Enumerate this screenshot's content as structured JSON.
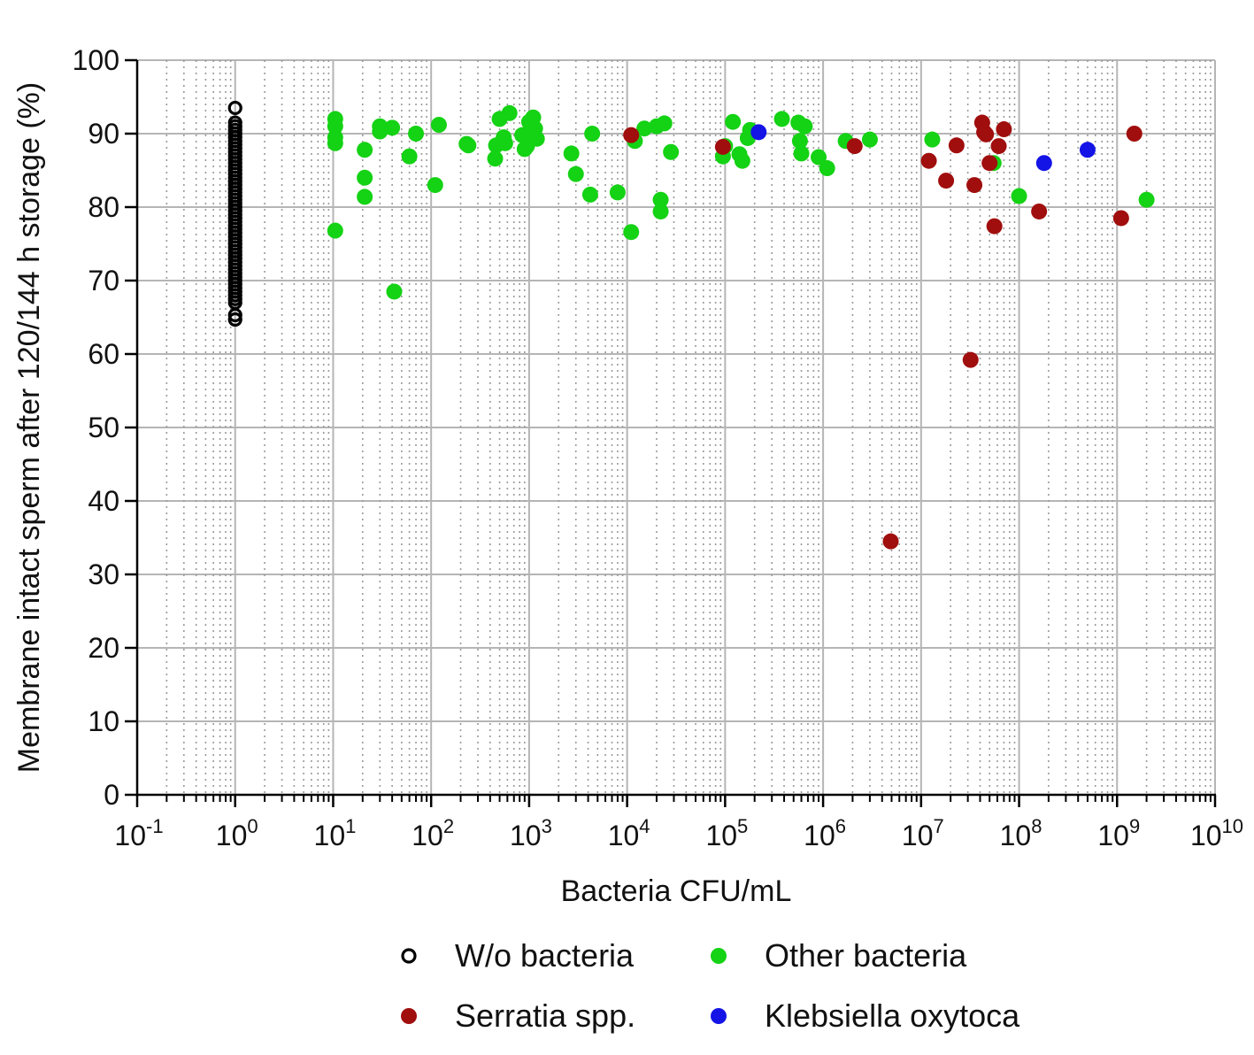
{
  "chart_data": {
    "type": "scatter",
    "title": "",
    "xlabel": "Bacteria CFU/mL",
    "ylabel": "Membrane intact sperm after 120/144 h storage (%)",
    "x_scale": "log10",
    "xlim": [
      0.1,
      10000000000
    ],
    "ylim": [
      0,
      100
    ],
    "y_ticks": [
      0,
      10,
      20,
      30,
      40,
      50,
      60,
      70,
      80,
      90,
      100
    ],
    "x_tick_labels": [
      {
        "base": "10",
        "exp": "-1"
      },
      {
        "base": "10",
        "exp": "0"
      },
      {
        "base": "10",
        "exp": "1"
      },
      {
        "base": "10",
        "exp": "2"
      },
      {
        "base": "10",
        "exp": "3"
      },
      {
        "base": "10",
        "exp": "4"
      },
      {
        "base": "10",
        "exp": "5"
      },
      {
        "base": "10",
        "exp": "6"
      },
      {
        "base": "10",
        "exp": "7"
      },
      {
        "base": "10",
        "exp": "8"
      },
      {
        "base": "10",
        "exp": "9"
      },
      {
        "base": "10",
        "exp": "10"
      }
    ],
    "grid": true,
    "legend_position": "bottom",
    "series": [
      {
        "name": "W/o bacteria",
        "color": "#000000",
        "marker": "open-circle",
        "points": [
          [
            1,
            93.5
          ],
          [
            1,
            91.5
          ],
          [
            1,
            91
          ],
          [
            1,
            90.5
          ],
          [
            1,
            90
          ],
          [
            1,
            89.5
          ],
          [
            1,
            89
          ],
          [
            1,
            88.5
          ],
          [
            1,
            88
          ],
          [
            1,
            87.5
          ],
          [
            1,
            87
          ],
          [
            1,
            86.5
          ],
          [
            1,
            86
          ],
          [
            1,
            85.5
          ],
          [
            1,
            85
          ],
          [
            1,
            84.5
          ],
          [
            1,
            84
          ],
          [
            1,
            83.5
          ],
          [
            1,
            83
          ],
          [
            1,
            82.5
          ],
          [
            1,
            82
          ],
          [
            1,
            81.5
          ],
          [
            1,
            81
          ],
          [
            1,
            80.5
          ],
          [
            1,
            80
          ],
          [
            1,
            79.5
          ],
          [
            1,
            79
          ],
          [
            1,
            78.5
          ],
          [
            1,
            78
          ],
          [
            1,
            77.5
          ],
          [
            1,
            77
          ],
          [
            1,
            76.5
          ],
          [
            1,
            76
          ],
          [
            1,
            75.5
          ],
          [
            1,
            75
          ],
          [
            1,
            74.5
          ],
          [
            1,
            74
          ],
          [
            1,
            73.5
          ],
          [
            1,
            73
          ],
          [
            1,
            72.5
          ],
          [
            1,
            72
          ],
          [
            1,
            71.5
          ],
          [
            1,
            71
          ],
          [
            1,
            70.5
          ],
          [
            1,
            70
          ],
          [
            1,
            69.5
          ],
          [
            1,
            69
          ],
          [
            1,
            68.5
          ],
          [
            1,
            68
          ],
          [
            1,
            67.5
          ],
          [
            1,
            67
          ],
          [
            1,
            65.3
          ],
          [
            1,
            64.7
          ]
        ]
      },
      {
        "name": "Other bacteria",
        "color": "#14d214",
        "marker": "filled-circle",
        "points": [
          [
            10.5,
            92
          ],
          [
            10.5,
            91
          ],
          [
            10.5,
            89.5
          ],
          [
            10.5,
            88.7
          ],
          [
            10.5,
            76.8
          ],
          [
            21,
            87.8
          ],
          [
            21,
            84
          ],
          [
            21,
            81.4
          ],
          [
            30,
            91
          ],
          [
            30,
            90.3
          ],
          [
            40,
            90.8
          ],
          [
            42,
            68.5
          ],
          [
            60,
            86.9
          ],
          [
            70,
            90
          ],
          [
            110,
            83
          ],
          [
            120,
            91.2
          ],
          [
            230,
            88.6
          ],
          [
            240,
            88.4
          ],
          [
            450,
            86.6
          ],
          [
            460,
            88.4
          ],
          [
            500,
            92
          ],
          [
            550,
            89.5
          ],
          [
            570,
            88.7
          ],
          [
            630,
            92.8
          ],
          [
            850,
            89.8
          ],
          [
            900,
            87.9
          ],
          [
            950,
            88.3
          ],
          [
            1000,
            91.6
          ],
          [
            1050,
            89.6
          ],
          [
            1100,
            92.2
          ],
          [
            1150,
            90.7
          ],
          [
            1200,
            89.3
          ],
          [
            2700,
            87.3
          ],
          [
            3000,
            84.5
          ],
          [
            4200,
            81.7
          ],
          [
            4400,
            90
          ],
          [
            8000,
            82
          ],
          [
            11000,
            76.6
          ],
          [
            12000,
            89
          ],
          [
            15000,
            90.7
          ],
          [
            20000,
            91
          ],
          [
            22000,
            81
          ],
          [
            22000,
            79.4
          ],
          [
            24000,
            91.4
          ],
          [
            28000,
            87.5
          ],
          [
            95000,
            86.9
          ],
          [
            100000,
            88.3
          ],
          [
            120000,
            91.6
          ],
          [
            140000,
            87.2
          ],
          [
            150000,
            86.3
          ],
          [
            170000,
            89.4
          ],
          [
            180000,
            90.5
          ],
          [
            380000,
            92
          ],
          [
            560000,
            91.5
          ],
          [
            580000,
            89
          ],
          [
            600000,
            87.3
          ],
          [
            650000,
            91
          ],
          [
            900000,
            86.8
          ],
          [
            1100000,
            85.3
          ],
          [
            1700000,
            89
          ],
          [
            3000000,
            89.2
          ],
          [
            13000000,
            89.2
          ],
          [
            55000000,
            86
          ],
          [
            100000000,
            81.5
          ],
          [
            2000000000,
            81
          ]
        ]
      },
      {
        "name": "Serratia spp.",
        "color": "#a00e0e",
        "marker": "filled-circle",
        "points": [
          [
            11000,
            89.8
          ],
          [
            95000,
            88.2
          ],
          [
            2100000,
            88.3
          ],
          [
            4900000,
            34.5
          ],
          [
            12000000,
            86.3
          ],
          [
            18000000,
            83.6
          ],
          [
            23000000,
            88.4
          ],
          [
            32000000,
            59.2
          ],
          [
            35000000,
            83
          ],
          [
            42000000,
            91.5
          ],
          [
            44000000,
            90.2
          ],
          [
            46000000,
            89.9
          ],
          [
            50000000,
            86
          ],
          [
            56000000,
            77.4
          ],
          [
            62000000,
            88.3
          ],
          [
            70000000,
            90.6
          ],
          [
            160000000,
            79.4
          ],
          [
            1100000000,
            78.5
          ],
          [
            1500000000,
            90
          ]
        ]
      },
      {
        "name": "Klebsiella oxytoca",
        "color": "#1414e6",
        "marker": "filled-circle",
        "points": [
          [
            220000,
            90.2
          ],
          [
            180000000,
            86
          ],
          [
            500000000,
            87.8
          ]
        ]
      }
    ]
  }
}
